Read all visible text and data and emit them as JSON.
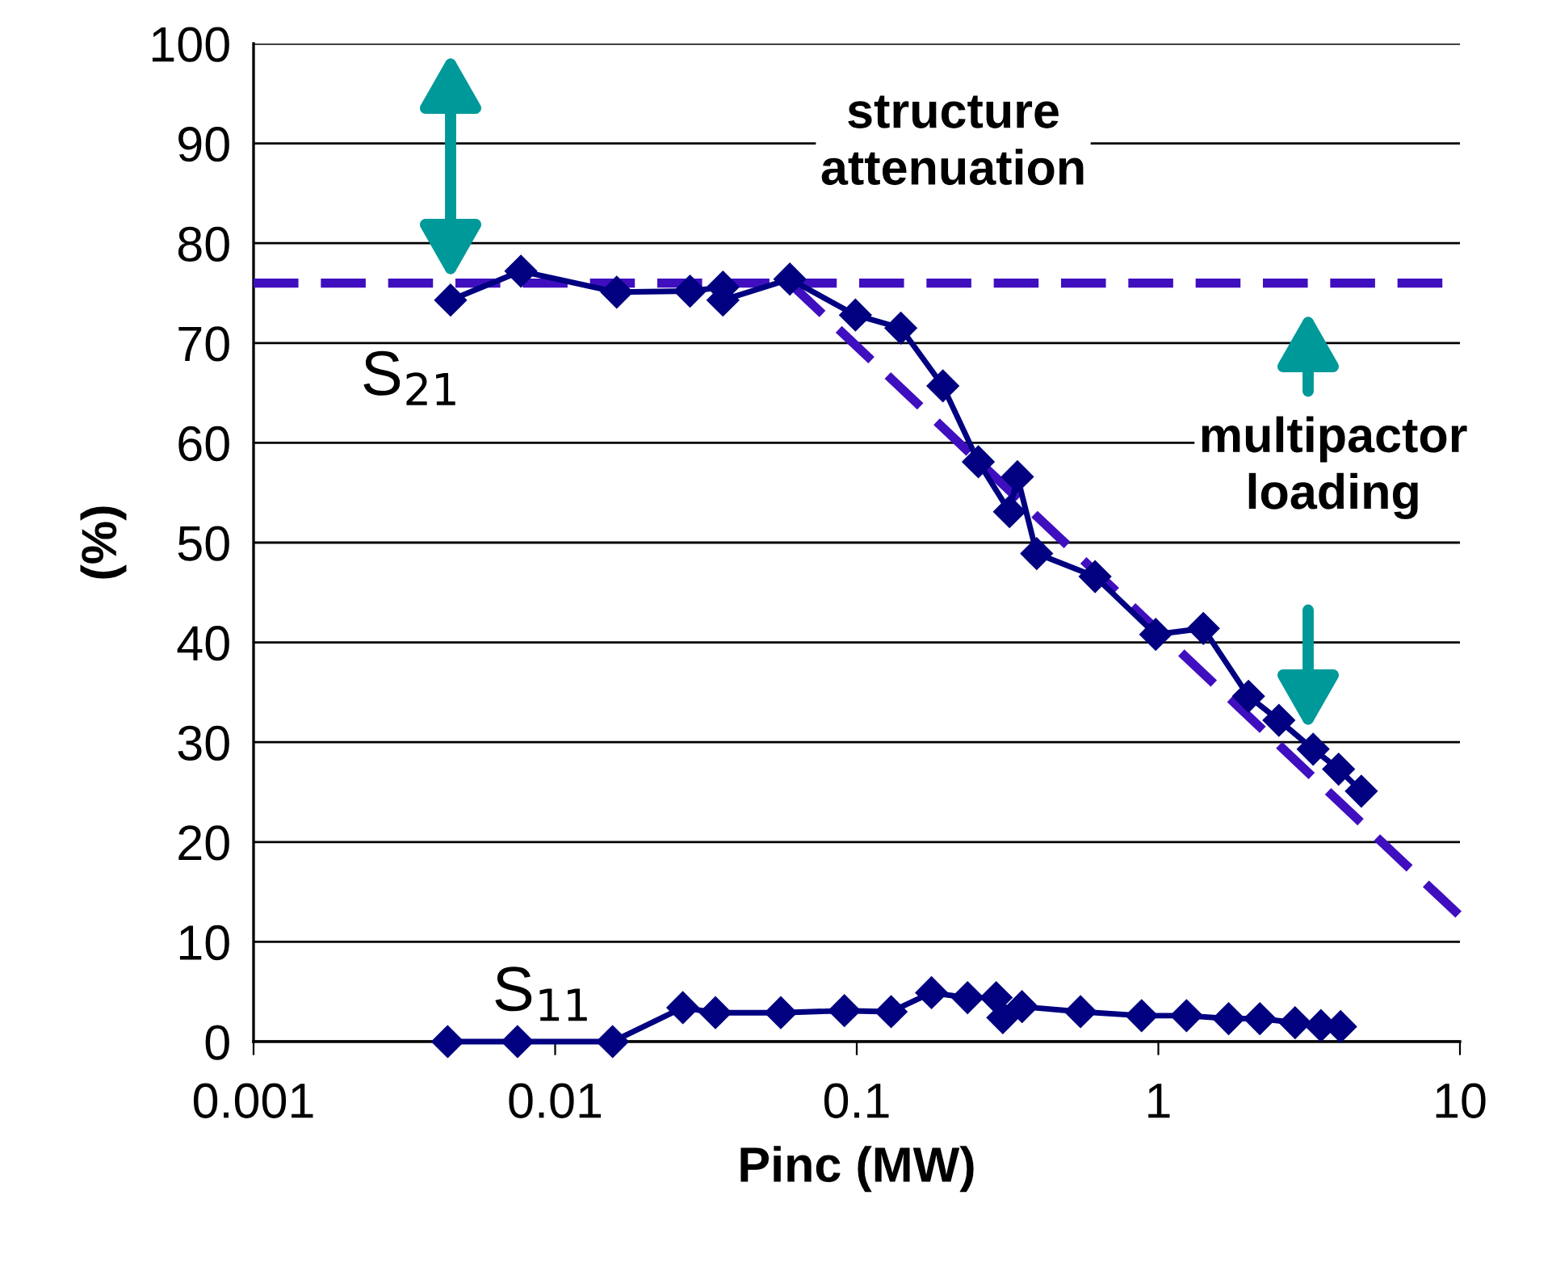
{
  "chart_data": {
    "type": "line",
    "xlabel": "Pinc (MW)",
    "ylabel": "(%)",
    "log": "x",
    "xlim": [
      0.001,
      10
    ],
    "xticks": [
      0.001,
      0.01,
      0.1,
      1,
      10
    ],
    "ylim": [
      0,
      100
    ],
    "yticks": [
      0,
      10,
      20,
      30,
      40,
      50,
      60,
      70,
      80,
      90,
      100
    ],
    "grid": "y",
    "marker": "diamond",
    "line_style": "solid",
    "series": [
      {
        "name": "S$_{21}$",
        "color": "#000080",
        "x": [
          0.0045,
          0.0077,
          0.016,
          0.028,
          0.036,
          0.036,
          0.06,
          0.099,
          0.14,
          0.193,
          0.253,
          0.321,
          0.341,
          0.395,
          0.617,
          0.98,
          1.41,
          1.99,
          2.51,
          3.26,
          3.96,
          4.71
        ],
        "values": [
          74.3,
          77.2,
          75.1,
          75.2,
          75.6,
          74.3,
          76.4,
          72.8,
          71.5,
          65.7,
          58.1,
          53.1,
          56.6,
          48.9,
          46.6,
          40.8,
          41.4,
          34.6,
          32.2,
          29.3,
          27.3,
          25.1
        ]
      },
      {
        "name": "S$_{11}$",
        "color": "#000080",
        "x": [
          0.0044,
          0.0075,
          0.0155,
          0.0265,
          0.034,
          0.056,
          0.091,
          0.13,
          0.177,
          0.233,
          0.29,
          0.305,
          0.353,
          0.552,
          0.88,
          1.24,
          1.71,
          2.17,
          2.84,
          3.46,
          4.02
        ],
        "values": [
          0,
          0,
          0,
          3.4,
          2.9,
          2.9,
          3.1,
          3.0,
          4.9,
          4.4,
          4.4,
          2.4,
          3.5,
          3.0,
          2.6,
          2.6,
          2.3,
          2.3,
          1.9,
          1.6,
          1.5
        ]
      },
      {
        "type": "line",
        "color": "#3f0fbf",
        "marker": "none",
        "line_style": "dashed",
        "x": [
          0.06,
          10
        ],
        "values": [
          76,
          12.6
        ]
      }
    ],
    "ref_lines": [
      {
        "axis": "y",
        "value": 76,
        "color": "#3f0fbf",
        "line_style": "dashed"
      }
    ],
    "annotations": [
      "structure\nattenuation",
      "multipactor\nloading"
    ]
  }
}
